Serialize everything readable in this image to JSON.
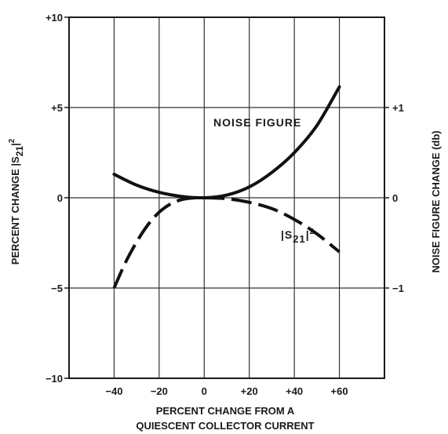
{
  "chart_data": {
    "type": "line",
    "title": "",
    "xlabel_line1": "PERCENT CHANGE FROM A",
    "xlabel_line2": "QUIESCENT COLLECTOR CURRENT",
    "ylabel_left_prefix": "PERCENT CHANGE |S",
    "ylabel_left_sub": "21",
    "ylabel_left_suffix": "|",
    "ylabel_left_sup": "2",
    "ylabel_right": "NOISE FIGURE CHANGE (db)",
    "xlim": [
      -60,
      80
    ],
    "ylim": [
      -10,
      10
    ],
    "y2lim": [
      -2,
      2
    ],
    "x_ticks": [
      -40,
      -20,
      0,
      20,
      40,
      60
    ],
    "x_tick_labels": [
      "−40",
      "−20",
      "0",
      "+20",
      "+40",
      "+60"
    ],
    "y_ticks": [
      10,
      5,
      0,
      -5,
      -10
    ],
    "y_tick_labels": [
      "+10",
      "+5",
      "0",
      "−5",
      "−10"
    ],
    "y2_ticks": [
      1,
      0,
      -1
    ],
    "y2_tick_labels": [
      "+1",
      "0",
      "−1"
    ],
    "grid": true,
    "series": [
      {
        "name": "NOISE FIGURE",
        "axis": "right",
        "style": "solid",
        "x": [
          -40,
          -30,
          -20,
          -10,
          0,
          10,
          20,
          30,
          40,
          50,
          60
        ],
        "y": [
          0.26,
          0.14,
          0.06,
          0.015,
          0.0,
          0.03,
          0.12,
          0.28,
          0.5,
          0.8,
          1.23
        ]
      },
      {
        "name_prefix": "|S",
        "name_sub": "21",
        "name_suffix": "|",
        "name_sup": "2",
        "axis": "left",
        "style": "dashed",
        "x": [
          -40,
          -35,
          -30,
          -25,
          -20,
          -15,
          -10,
          -5,
          0,
          10,
          20,
          30,
          40,
          50,
          60
        ],
        "y": [
          -5.0,
          -3.6,
          -2.45,
          -1.5,
          -0.8,
          -0.35,
          -0.1,
          -0.01,
          0.0,
          -0.05,
          -0.25,
          -0.6,
          -1.2,
          -2.0,
          -3.0
        ]
      }
    ]
  }
}
